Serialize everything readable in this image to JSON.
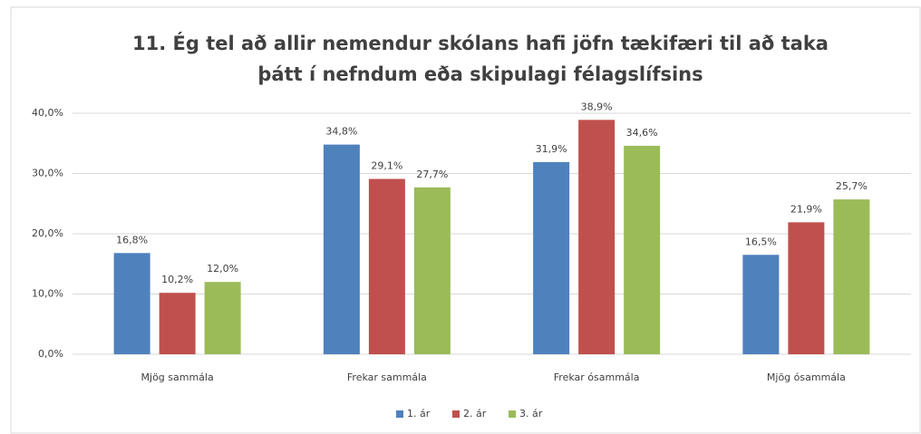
{
  "chart_data": {
    "type": "bar",
    "title": [
      "11. Ég tel að allir nemendur skólans hafi jöfn tækifæri til að taka",
      "þátt í nefndum eða skipulagi félagslífsins"
    ],
    "categories": [
      "Mjög sammála",
      "Frekar sammála",
      "Frekar ósammála",
      "Mjög ósammála"
    ],
    "series": [
      {
        "name": "1. ár",
        "color": "#4f81bd",
        "values": [
          16.8,
          34.8,
          31.9,
          16.5
        ],
        "value_labels": [
          "16,8%",
          "34,8%",
          "31,9%",
          "16,5%"
        ]
      },
      {
        "name": "2. ár",
        "color": "#c0504d",
        "values": [
          10.2,
          29.1,
          38.9,
          21.9
        ],
        "value_labels": [
          "10,2%",
          "29,1%",
          "38,9%",
          "21,9%"
        ]
      },
      {
        "name": "3. ár",
        "color": "#9bbb59",
        "values": [
          12.0,
          27.7,
          34.6,
          25.7
        ],
        "value_labels": [
          "12,0%",
          "27,7%",
          "34,6%",
          "25,7%"
        ]
      }
    ],
    "ylim": [
      0,
      40
    ],
    "yticks": [
      {
        "value": 0,
        "label": "0,0%"
      },
      {
        "value": 10,
        "label": "10,0%"
      },
      {
        "value": 20,
        "label": "20,0%"
      },
      {
        "value": 30,
        "label": "30,0%"
      },
      {
        "value": 40,
        "label": "40,0%"
      }
    ],
    "grid": true,
    "legend": "bottom"
  }
}
